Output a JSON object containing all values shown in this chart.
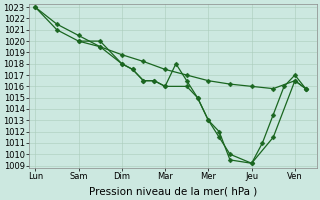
{
  "background_color": "#cce8e0",
  "grid_color": "#aaccbb",
  "line_color": "#1a6620",
  "xtick_labels": [
    "Lun",
    "Sam",
    "Dim",
    "Mar",
    "Mer",
    "Jeu",
    "Ven"
  ],
  "xlabel": "Pression niveau de la mer( hPa )",
  "ylim_low": 1009,
  "ylim_high": 1023,
  "yticks": [
    1009,
    1010,
    1011,
    1012,
    1013,
    1014,
    1015,
    1016,
    1017,
    1018,
    1019,
    1020,
    1021,
    1022,
    1023
  ],
  "xtick_positions": [
    0,
    1,
    2,
    3,
    4,
    5,
    6
  ],
  "xlabel_fontsize": 7.5,
  "tick_fontsize": 6,
  "figsize": [
    3.2,
    2.0
  ],
  "dpi": 100,
  "line_width": 0.9,
  "marker_size": 2.5,
  "line1_x": [
    0,
    0.5,
    1.0,
    1.5,
    2.0,
    2.25,
    2.5,
    2.75,
    3.0,
    3.25,
    3.5,
    3.75,
    4.0,
    4.25,
    4.5,
    5.0,
    5.5,
    6.0,
    6.25
  ],
  "line1_y": [
    1023,
    1021,
    1020,
    1019.5,
    1018,
    1017.5,
    1016.5,
    1016.5,
    1016,
    1018,
    1016.5,
    1015,
    1013,
    1011.5,
    1010,
    1009.2,
    1011.5,
    1016.5,
    1015.8
  ],
  "line2_x": [
    1.0,
    1.5,
    2.0,
    2.25,
    2.5,
    2.75,
    3.0,
    3.5,
    3.75,
    4.0,
    4.25,
    4.5,
    5.0,
    5.25,
    5.5,
    5.75,
    6.0,
    6.25
  ],
  "line2_y": [
    1020,
    1020,
    1018,
    1017.5,
    1016.5,
    1016.5,
    1016,
    1016,
    1015,
    1013,
    1012,
    1009.5,
    1009.2,
    1011,
    1013.5,
    1016,
    1017,
    1015.8
  ],
  "line3_x": [
    0,
    0.5,
    1.0,
    1.5,
    2.0,
    2.5,
    3.0,
    3.5,
    4.0,
    4.5,
    5.0,
    5.5,
    6.0,
    6.25
  ],
  "line3_y": [
    1023,
    1021.5,
    1020.5,
    1019.5,
    1018.8,
    1018.2,
    1017.5,
    1017.0,
    1016.5,
    1016.2,
    1016.0,
    1015.8,
    1016.5,
    1015.8
  ]
}
